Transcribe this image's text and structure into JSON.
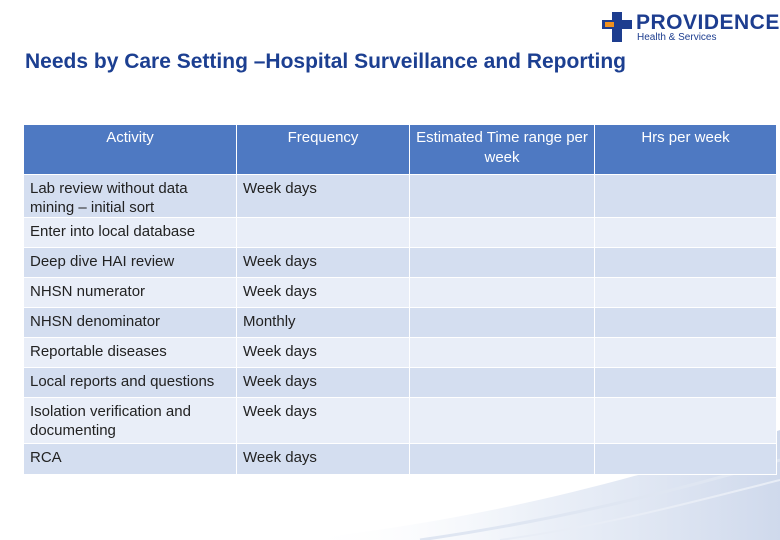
{
  "logo": {
    "name": "PROVIDENCE",
    "subtitle": "Health & Services",
    "colors": {
      "cross_blue": "#1d3d8f",
      "cross_orange": "#f0901e"
    }
  },
  "slide": {
    "title": "Needs by Care Setting –Hospital Surveillance and Reporting"
  },
  "table": {
    "headers": [
      "Activity",
      "Frequency",
      "Estimated Time range per week",
      "Hrs per week"
    ],
    "rows": [
      {
        "activity": "Lab review without data mining – initial sort",
        "frequency": "Week days",
        "time_range": "",
        "hrs": ""
      },
      {
        "activity": "Enter into local database",
        "frequency": "",
        "time_range": "",
        "hrs": ""
      },
      {
        "activity": "Deep dive HAI review",
        "frequency": "Week days",
        "time_range": "",
        "hrs": ""
      },
      {
        "activity": "NHSN numerator",
        "frequency": "Week days",
        "time_range": "",
        "hrs": ""
      },
      {
        "activity": "NHSN denominator",
        "frequency": "Monthly",
        "time_range": "",
        "hrs": ""
      },
      {
        "activity": "Reportable diseases",
        "frequency": "Week days",
        "time_range": "",
        "hrs": ""
      },
      {
        "activity": "Local reports and questions",
        "frequency": "Week days",
        "time_range": "",
        "hrs": ""
      },
      {
        "activity": "Isolation verification and documenting",
        "frequency": "Week days",
        "time_range": "",
        "hrs": ""
      },
      {
        "activity": "RCA",
        "frequency": "Week days",
        "time_range": "",
        "hrs": ""
      }
    ],
    "colors": {
      "header_bg": "#4e79c2",
      "row_dark": "#d4def0",
      "row_light": "#e9eef8"
    }
  }
}
